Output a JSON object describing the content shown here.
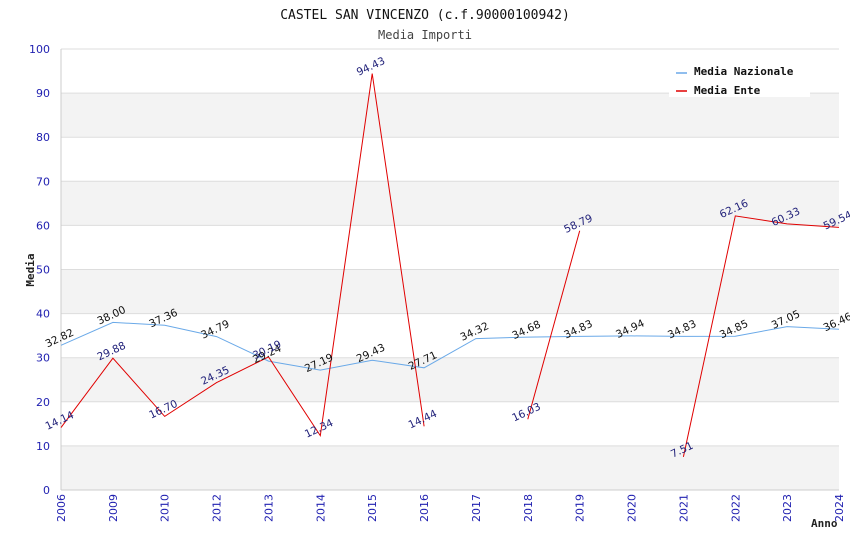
{
  "chart_data": {
    "type": "line",
    "title": "CASTEL SAN VINCENZO (c.f.90000100942)",
    "subtitle": "Media Importi",
    "xlabel": "Anno",
    "ylabel": "Media",
    "ylim": [
      0,
      100
    ],
    "yticks": [
      0,
      10,
      20,
      30,
      40,
      50,
      60,
      70,
      80,
      90,
      100
    ],
    "categories": [
      "2006",
      "2009",
      "2010",
      "2012",
      "2013",
      "2014",
      "2015",
      "2016",
      "2017",
      "2018",
      "2019",
      "2020",
      "2021",
      "2022",
      "2023",
      "2024"
    ],
    "grid": true,
    "legend_position": "top-right",
    "series": [
      {
        "name": "Media Nazionale",
        "color": "#6aa9e8",
        "values": [
          32.82,
          38.0,
          37.36,
          34.79,
          29.24,
          27.19,
          29.43,
          27.71,
          34.32,
          34.68,
          34.83,
          34.94,
          34.83,
          34.85,
          37.05,
          36.46
        ],
        "labels": [
          "32.82",
          "38.00",
          "37.36",
          "34.79",
          "29.24",
          "27.19",
          "29.43",
          "27.71",
          "34.32",
          "34.68",
          "34.83",
          "34.94",
          "34.83",
          "34.85",
          "37.05",
          "36.46"
        ]
      },
      {
        "name": "Media Ente",
        "color": "#e00000",
        "values": [
          14.14,
          29.88,
          16.7,
          24.35,
          30.19,
          12.34,
          94.43,
          14.44,
          null,
          16.03,
          58.79,
          null,
          7.51,
          62.16,
          60.33,
          59.54
        ],
        "labels": [
          "14.14",
          "29.88",
          "16.70",
          "24.35",
          "30.19",
          "12.34",
          "94.43",
          "14.44",
          "",
          "16.03",
          "58.79",
          "",
          "7.51",
          "62.16",
          "60.33",
          "59.54"
        ]
      }
    ]
  }
}
